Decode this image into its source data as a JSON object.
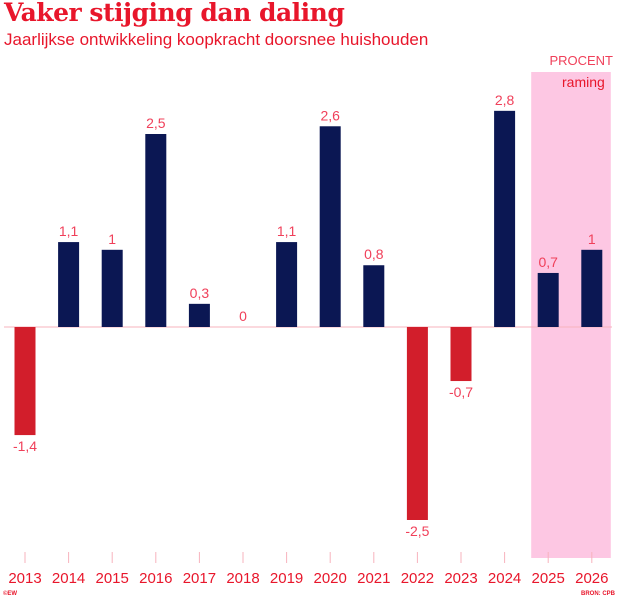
{
  "header": {
    "title": "Vaker stijging dan daling",
    "subtitle": "Jaarlijkse ontwikkeling koopkracht doorsnee huishouden",
    "unit": "PROCENT"
  },
  "footer": {
    "credit": "©EW",
    "source": "BRON: CPB"
  },
  "colors": {
    "positive": "#0b1753",
    "negative": "#d21e2b",
    "label": "#f0405a",
    "forecast_shade": "#fdc7e3",
    "baseline": "#f7b3bd"
  },
  "chart_data": {
    "type": "bar",
    "title": "Vaker stijging dan daling",
    "subtitle": "Jaarlijkse ontwikkeling koopkracht doorsnee huishouden",
    "xlabel": "",
    "ylabel": "PROCENT",
    "categories": [
      "2013",
      "2014",
      "2015",
      "2016",
      "2017",
      "2018",
      "2019",
      "2020",
      "2021",
      "2022",
      "2023",
      "2024",
      "2025",
      "2026"
    ],
    "values": [
      -1.4,
      1.1,
      1.0,
      2.5,
      0.3,
      0,
      1.1,
      2.6,
      0.8,
      -2.5,
      -0.7,
      2.8,
      0.7,
      1.0
    ],
    "value_labels": [
      "-1,4",
      "1,1",
      "1",
      "2,5",
      "0,3",
      "0",
      "1,1",
      "2,6",
      "0,8",
      "-2,5",
      "-0,7",
      "2,8",
      "0,7",
      "1"
    ],
    "ylim": [
      -2.9,
      3.3
    ],
    "grid": false,
    "legend": "none",
    "annotations": [
      {
        "type": "shaded-range",
        "from": "2025",
        "to": "2026",
        "label": "raming"
      }
    ]
  }
}
